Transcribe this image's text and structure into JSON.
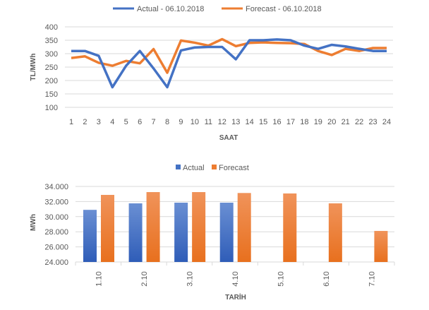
{
  "colors": {
    "actual": "#4472C4",
    "forecast": "#ED7D31",
    "grid": "#D9D9D9"
  },
  "chart_data": [
    {
      "type": "line",
      "title": "",
      "xlabel": "SAAT",
      "ylabel": "TL/MWh",
      "ylim": [
        100,
        400
      ],
      "yticks": [
        "100",
        "150",
        "200",
        "250",
        "300",
        "350",
        "400"
      ],
      "x": [
        "1",
        "2",
        "3",
        "4",
        "5",
        "6",
        "7",
        "8",
        "9",
        "10",
        "11",
        "12",
        "13",
        "14",
        "15",
        "16",
        "17",
        "18",
        "19",
        "20",
        "21",
        "22",
        "23",
        "24"
      ],
      "legend_position": "top",
      "series": [
        {
          "name": "Actual - 06.10.2018",
          "values": [
            310,
            310,
            292,
            175,
            255,
            310,
            245,
            175,
            312,
            323,
            325,
            325,
            279,
            350,
            350,
            353,
            350,
            330,
            318,
            333,
            327,
            318,
            310,
            310
          ]
        },
        {
          "name": "Forecast - 06.10.2018",
          "values": [
            284,
            290,
            266,
            255,
            273,
            264,
            317,
            229,
            349,
            341,
            330,
            354,
            328,
            340,
            342,
            340,
            339,
            336,
            310,
            295,
            318,
            310,
            321,
            321
          ]
        }
      ]
    },
    {
      "type": "bar",
      "title": "",
      "xlabel": "TARİH",
      "ylabel": "MWh",
      "ylim": [
        24000,
        34000
      ],
      "yticks": [
        "24.000",
        "26.000",
        "28.000",
        "30.000",
        "32.000",
        "34.000"
      ],
      "categories": [
        "1.10",
        "2.10",
        "3.10",
        "4.10",
        "5.10",
        "6.10",
        "7.10"
      ],
      "legend_position": "top",
      "series": [
        {
          "name": "Actual",
          "values": [
            30900,
            31760,
            31850,
            31850,
            null,
            null,
            null
          ]
        },
        {
          "name": "Forecast",
          "values": [
            32880,
            33250,
            33250,
            33130,
            33070,
            31760,
            28110
          ]
        }
      ]
    }
  ]
}
